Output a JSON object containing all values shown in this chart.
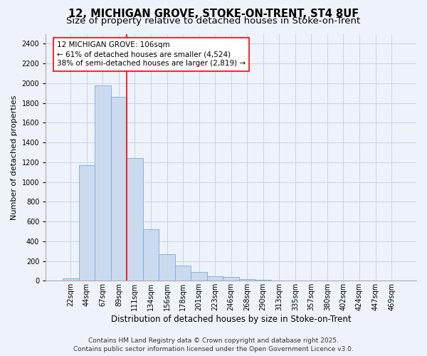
{
  "title_line1": "12, MICHIGAN GROVE, STOKE-ON-TRENT, ST4 8UF",
  "title_line2": "Size of property relative to detached houses in Stoke-on-Trent",
  "xlabel": "Distribution of detached houses by size in Stoke-on-Trent",
  "ylabel": "Number of detached properties",
  "bar_labels": [
    "22sqm",
    "44sqm",
    "67sqm",
    "89sqm",
    "111sqm",
    "134sqm",
    "156sqm",
    "178sqm",
    "201sqm",
    "223sqm",
    "246sqm",
    "268sqm",
    "290sqm",
    "313sqm",
    "335sqm",
    "357sqm",
    "380sqm",
    "402sqm",
    "424sqm",
    "447sqm",
    "469sqm"
  ],
  "bar_values": [
    25,
    1170,
    1980,
    1860,
    1240,
    520,
    270,
    150,
    90,
    45,
    40,
    20,
    10,
    5,
    3,
    3,
    3,
    3,
    3,
    3,
    3
  ],
  "bar_color": "#ccdaf0",
  "bar_edge_color": "#7aaad8",
  "vline_index": 4,
  "vline_color": "red",
  "annotation_text": "12 MICHIGAN GROVE: 106sqm\n← 61% of detached houses are smaller (4,524)\n38% of semi-detached houses are larger (2,819) →",
  "ylim": [
    0,
    2500
  ],
  "yticks": [
    0,
    200,
    400,
    600,
    800,
    1000,
    1200,
    1400,
    1600,
    1800,
    2000,
    2200,
    2400
  ],
  "grid_color": "#c8d4e8",
  "background_color": "#eef2fa",
  "plot_bg_color": "#eef2fa",
  "footer_line1": "Contains HM Land Registry data © Crown copyright and database right 2025.",
  "footer_line2": "Contains public sector information licensed under the Open Government Licence v3.0.",
  "title_fontsize": 10.5,
  "subtitle_fontsize": 9.5,
  "xlabel_fontsize": 8.5,
  "ylabel_fontsize": 8,
  "tick_fontsize": 7,
  "annotation_fontsize": 7.5,
  "footer_fontsize": 6.5
}
